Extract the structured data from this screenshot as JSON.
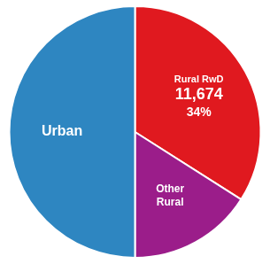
{
  "chart_data": {
    "type": "pie",
    "values": [
      34,
      16,
      50
    ],
    "colors": [
      "#E0191F",
      "#9B1D8A",
      "#2E86C1"
    ],
    "value_labels": [
      "34%",
      null,
      null
    ],
    "annotations": [
      [
        "Rural RwD",
        "11,674",
        "34%"
      ],
      [
        "Other",
        "Rural"
      ],
      [
        "Urban"
      ]
    ]
  }
}
